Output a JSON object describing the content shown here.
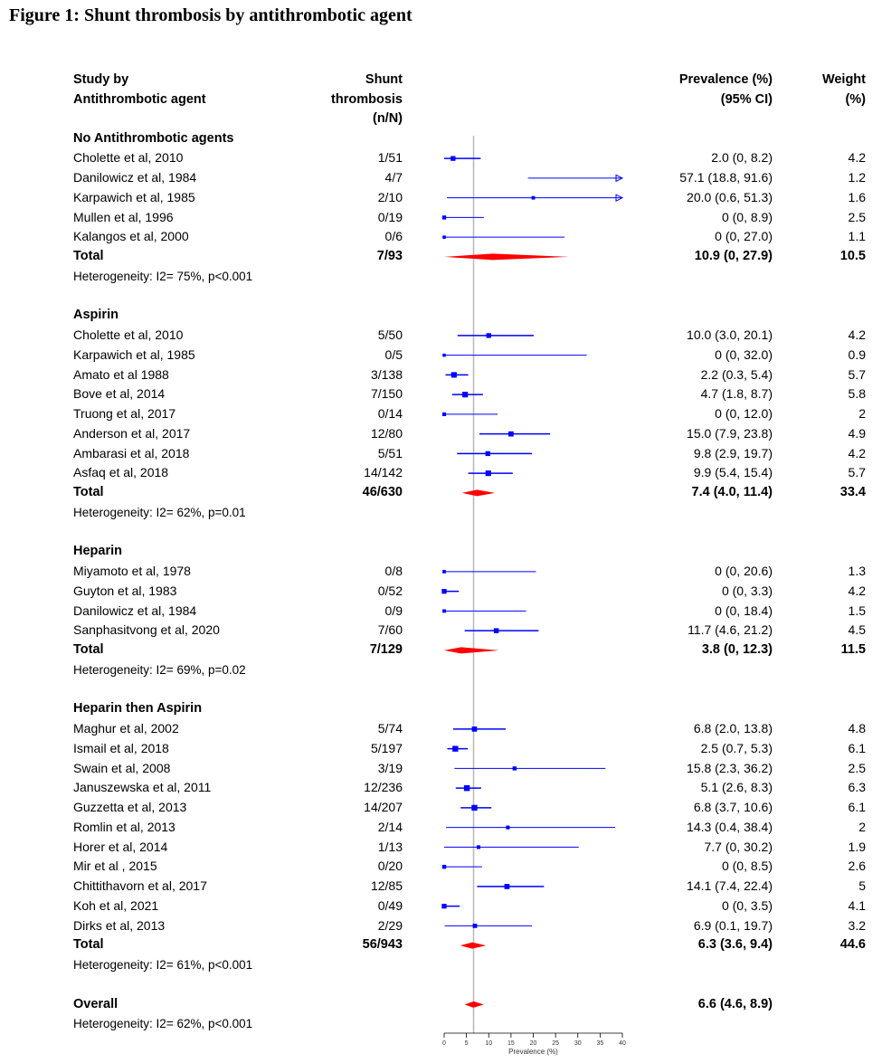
{
  "title": "Figure 1: Shunt thrombosis by antithrombotic agent",
  "headers": {
    "study": [
      "Study by",
      "Antithrombotic agent"
    ],
    "n": [
      "Shunt",
      "thrombosis",
      "(n/N)"
    ],
    "prev": [
      "Prevalence (%)",
      "(95% CI)"
    ],
    "weight": [
      "Weight",
      "(%)"
    ]
  },
  "rows": [
    {
      "kind": "group",
      "label": "No Antithrombotic agents"
    },
    {
      "kind": "study",
      "label": "Cholette et al, 2010",
      "n": "1/51",
      "ci_text": "2.0 (0, 8.2)",
      "weight": "4.2",
      "est": 2.0,
      "lo": 0,
      "hi": 8.2,
      "w": 4.2
    },
    {
      "kind": "study",
      "label": "Danilowicz et al, 1984",
      "n": "4/7",
      "ci_text": "57.1 (18.8, 91.6)",
      "weight": "1.2",
      "est": 57.1,
      "lo": 18.8,
      "hi": 91.6,
      "w": 1.2
    },
    {
      "kind": "study",
      "label": "Karpawich et al, 1985",
      "n": "2/10",
      "ci_text": "20.0 (0.6, 51.3)",
      "weight": "1.6",
      "est": 20.0,
      "lo": 0.6,
      "hi": 51.3,
      "w": 1.6
    },
    {
      "kind": "study",
      "label": "Mullen et al, 1996",
      "n": "0/19",
      "ci_text": "0 (0, 8.9)",
      "weight": "2.5",
      "est": 0,
      "lo": 0,
      "hi": 8.9,
      "w": 2.5
    },
    {
      "kind": "study",
      "label": "Kalangos et al, 2000",
      "n": "0/6",
      "ci_text": "0 (0, 27.0)",
      "weight": "1.1",
      "est": 0,
      "lo": 0,
      "hi": 27.0,
      "w": 1.1
    },
    {
      "kind": "total",
      "label": "Total",
      "n": "7/93",
      "ci_text": "10.9 (0, 27.9)",
      "weight": "10.5",
      "est": 10.9,
      "lo": 0,
      "hi": 27.9
    },
    {
      "kind": "het",
      "label": "Heterogeneity: I2= 75%, p<0.001"
    },
    {
      "kind": "blank"
    },
    {
      "kind": "group",
      "label": "Aspirin"
    },
    {
      "kind": "study",
      "label": "Cholette et al, 2010",
      "n": "5/50",
      "ci_text": "10.0 (3.0, 20.1)",
      "weight": "4.2",
      "est": 10.0,
      "lo": 3.0,
      "hi": 20.1,
      "w": 4.2
    },
    {
      "kind": "study",
      "label": "Karpawich et al, 1985",
      "n": "0/5",
      "ci_text": "0 (0, 32.0)",
      "weight": "0.9",
      "est": 0,
      "lo": 0,
      "hi": 32.0,
      "w": 0.9
    },
    {
      "kind": "study",
      "label": "Amato et al 1988",
      "n": "3/138",
      "ci_text": "2.2 (0.3, 5.4)",
      "weight": "5.7",
      "est": 2.2,
      "lo": 0.3,
      "hi": 5.4,
      "w": 5.7
    },
    {
      "kind": "study",
      "label": "Bove et al, 2014",
      "n": "7/150",
      "ci_text": "4.7 (1.8, 8.7)",
      "weight": "5.8",
      "est": 4.7,
      "lo": 1.8,
      "hi": 8.7,
      "w": 5.8
    },
    {
      "kind": "study",
      "label": "Truong et al, 2017",
      "n": "0/14",
      "ci_text": "0 (0, 12.0)",
      "weight": "2",
      "est": 0,
      "lo": 0,
      "hi": 12.0,
      "w": 2
    },
    {
      "kind": "study",
      "label": "Anderson et al, 2017",
      "n": "12/80",
      "ci_text": "15.0 (7.9, 23.8)",
      "weight": "4.9",
      "est": 15.0,
      "lo": 7.9,
      "hi": 23.8,
      "w": 4.9
    },
    {
      "kind": "study",
      "label": "Ambarasi et al, 2018",
      "n": "5/51",
      "ci_text": "9.8 (2.9, 19.7)",
      "weight": "4.2",
      "est": 9.8,
      "lo": 2.9,
      "hi": 19.7,
      "w": 4.2
    },
    {
      "kind": "study",
      "label": "Asfaq et al, 2018",
      "n": "14/142",
      "ci_text": "9.9 (5.4, 15.4)",
      "weight": "5.7",
      "est": 9.9,
      "lo": 5.4,
      "hi": 15.4,
      "w": 5.7
    },
    {
      "kind": "total",
      "label": "Total",
      "n": "46/630",
      "ci_text": "7.4 (4.0, 11.4)",
      "weight": "33.4",
      "est": 7.4,
      "lo": 4.0,
      "hi": 11.4
    },
    {
      "kind": "het",
      "label": "Heterogeneity: I2= 62%, p=0.01"
    },
    {
      "kind": "blank"
    },
    {
      "kind": "group",
      "label": "Heparin"
    },
    {
      "kind": "study",
      "label": "Miyamoto et al, 1978",
      "n": "0/8",
      "ci_text": "0 (0, 20.6)",
      "weight": "1.3",
      "est": 0,
      "lo": 0,
      "hi": 20.6,
      "w": 1.3
    },
    {
      "kind": "study",
      "label": "Guyton et al, 1983",
      "n": "0/52",
      "ci_text": "0 (0, 3.3)",
      "weight": "4.2",
      "est": 0,
      "lo": 0,
      "hi": 3.3,
      "w": 4.2
    },
    {
      "kind": "study",
      "label": "Danilowicz et al, 1984",
      "n": "0/9",
      "ci_text": "0 (0, 18.4)",
      "weight": "1.5",
      "est": 0,
      "lo": 0,
      "hi": 18.4,
      "w": 1.5
    },
    {
      "kind": "study",
      "label": "Sanphasitvong et al, 2020",
      "n": "7/60",
      "ci_text": "11.7 (4.6, 21.2)",
      "weight": "4.5",
      "est": 11.7,
      "lo": 4.6,
      "hi": 21.2,
      "w": 4.5
    },
    {
      "kind": "total",
      "label": "Total",
      "n": "7/129",
      "ci_text": "3.8 (0, 12.3)",
      "weight": "11.5",
      "est": 3.8,
      "lo": 0,
      "hi": 12.3
    },
    {
      "kind": "het",
      "label": "Heterogeneity: I2= 69%, p=0.02"
    },
    {
      "kind": "blank"
    },
    {
      "kind": "group",
      "label": "Heparin then Aspirin"
    },
    {
      "kind": "study",
      "label": "Maghur et al, 2002",
      "n": "5/74",
      "ci_text": "6.8 (2.0, 13.8)",
      "weight": "4.8",
      "est": 6.8,
      "lo": 2.0,
      "hi": 13.8,
      "w": 4.8
    },
    {
      "kind": "study",
      "label": "Ismail et al, 2018",
      "n": "5/197",
      "ci_text": "2.5 (0.7, 5.3)",
      "weight": "6.1",
      "est": 2.5,
      "lo": 0.7,
      "hi": 5.3,
      "w": 6.1
    },
    {
      "kind": "study",
      "label": "Swain et al, 2008",
      "n": "3/19",
      "ci_text": "15.8 (2.3, 36.2)",
      "weight": "2.5",
      "est": 15.8,
      "lo": 2.3,
      "hi": 36.2,
      "w": 2.5
    },
    {
      "kind": "study",
      "label": "Januszewska et al, 2011",
      "n": "12/236",
      "ci_text": "5.1 (2.6, 8.3)",
      "weight": "6.3",
      "est": 5.1,
      "lo": 2.6,
      "hi": 8.3,
      "w": 6.3
    },
    {
      "kind": "study",
      "label": "Guzzetta et al, 2013",
      "n": "14/207",
      "ci_text": "6.8 (3.7, 10.6)",
      "weight": "6.1",
      "est": 6.8,
      "lo": 3.7,
      "hi": 10.6,
      "w": 6.1
    },
    {
      "kind": "study",
      "label": "Romlin et al, 2013",
      "n": "2/14",
      "ci_text": "14.3 (0.4, 38.4)",
      "weight": "2",
      "est": 14.3,
      "lo": 0.4,
      "hi": 38.4,
      "w": 2
    },
    {
      "kind": "study",
      "label": "Horer et al, 2014",
      "n": "1/13",
      "ci_text": "7.7 (0, 30.2)",
      "weight": "1.9",
      "est": 7.7,
      "lo": 0,
      "hi": 30.2,
      "w": 1.9
    },
    {
      "kind": "study",
      "label": "Mir et al , 2015",
      "n": "0/20",
      "ci_text": "0 (0, 8.5)",
      "weight": "2.6",
      "est": 0,
      "lo": 0,
      "hi": 8.5,
      "w": 2.6
    },
    {
      "kind": "study",
      "label": "Chittithavorn et al, 2017",
      "n": "12/85",
      "ci_text": "14.1 (7.4, 22.4)",
      "weight": "5",
      "est": 14.1,
      "lo": 7.4,
      "hi": 22.4,
      "w": 5
    },
    {
      "kind": "study",
      "label": "Koh et al, 2021",
      "n": "0/49",
      "ci_text": "0 (0, 3.5)",
      "weight": "4.1",
      "est": 0,
      "lo": 0,
      "hi": 3.5,
      "w": 4.1
    },
    {
      "kind": "study",
      "label": "Dirks et al, 2013",
      "n": "2/29",
      "ci_text": "6.9 (0.1, 19.7)",
      "weight": "3.2",
      "est": 6.9,
      "lo": 0.1,
      "hi": 19.7,
      "w": 3.2
    },
    {
      "kind": "total",
      "label": "Total",
      "n": "56/943",
      "ci_text": "6.3 (3.6, 9.4)",
      "weight": "44.6",
      "est": 6.3,
      "lo": 3.6,
      "hi": 9.4
    },
    {
      "kind": "het",
      "label": "Heterogeneity: I2= 61%, p<0.001"
    },
    {
      "kind": "blank"
    },
    {
      "kind": "overall",
      "label": "Overall",
      "ci_text": "6.6 (4.6, 8.9)",
      "est": 6.6,
      "lo": 4.6,
      "hi": 8.9
    },
    {
      "kind": "het",
      "label": "Heterogeneity: I2= 62%, p<0.001"
    }
  ],
  "chart_data": {
    "type": "forest",
    "title": "Figure 1: Shunt thrombosis by antithrombotic agent",
    "xlabel": "Prevalence (%)",
    "xlim": [
      0,
      40
    ],
    "xticks": [
      0,
      5,
      10,
      15,
      20,
      25,
      30,
      35,
      40
    ],
    "reference_line": 6.6
  },
  "colors": {
    "marker": "#0000ff",
    "diamond": "#ff0000",
    "reference": "#bbbbbb",
    "text": "#000000"
  }
}
